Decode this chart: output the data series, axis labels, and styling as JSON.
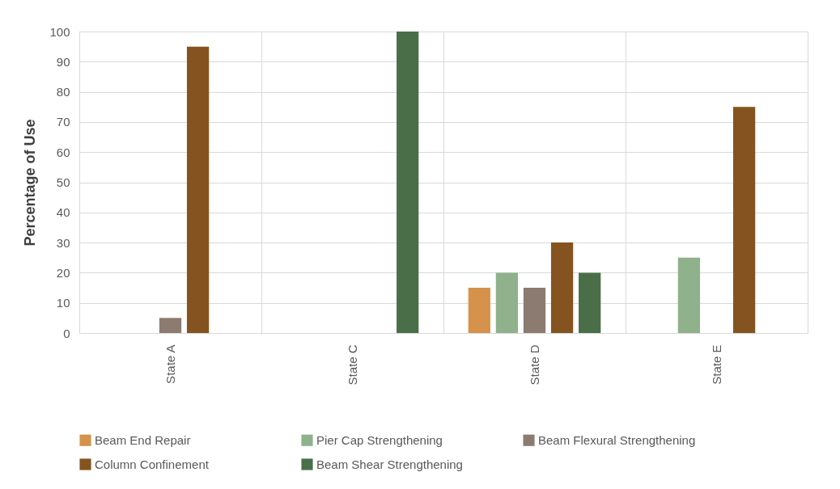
{
  "chart_data": {
    "type": "bar",
    "ylabel": "Percentage of Use",
    "categories": [
      "State A",
      "State C",
      "State D",
      "State E"
    ],
    "series": [
      {
        "name": "Beam End Repair",
        "color": "#d6924b",
        "values": [
          null,
          null,
          15,
          null
        ]
      },
      {
        "name": "Pier Cap Strengthening",
        "color": "#8fb18b",
        "values": [
          null,
          null,
          20,
          25
        ]
      },
      {
        "name": "Beam Flexural Strengthening",
        "color": "#8c7b70",
        "values": [
          5,
          null,
          15,
          null
        ]
      },
      {
        "name": "Column Confinement",
        "color": "#85531f",
        "values": [
          95,
          null,
          30,
          75
        ]
      },
      {
        "name": "Beam Shear Strengthening",
        "color": "#4a6f48",
        "values": [
          null,
          100,
          20,
          null
        ]
      }
    ],
    "ylim": [
      0,
      100
    ],
    "yticks": [
      0,
      10,
      20,
      30,
      40,
      50,
      60,
      70,
      80,
      90,
      100
    ],
    "grid": true,
    "legend": "bottom"
  }
}
